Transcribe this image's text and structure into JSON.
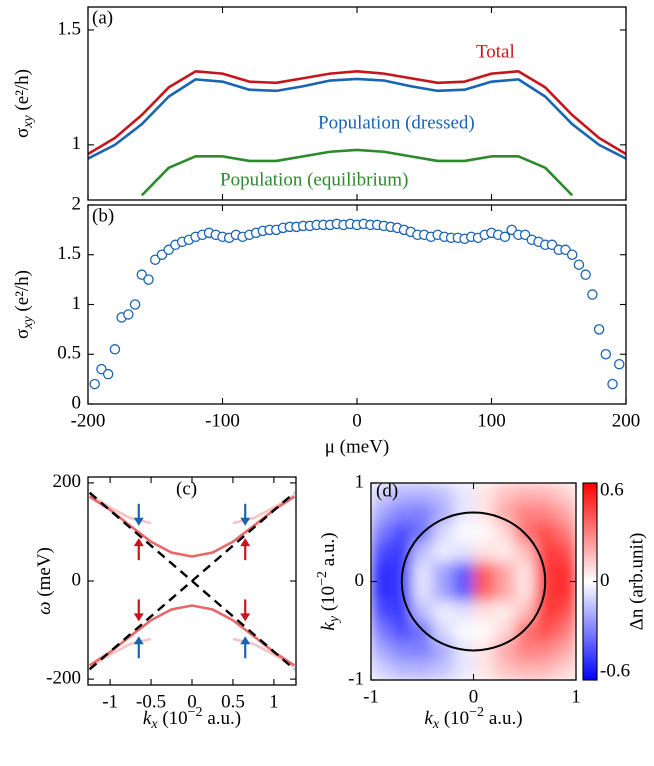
{
  "chart_data": [
    {
      "type": "line",
      "label": "(a)",
      "ylabel": [
        "σ",
        "xy",
        " (e²/h)"
      ],
      "x": [
        -200,
        -180,
        -160,
        -140,
        -120,
        -100,
        -80,
        -60,
        -40,
        -20,
        0,
        20,
        40,
        60,
        80,
        100,
        120,
        140,
        160,
        180,
        200
      ],
      "series": [
        {
          "name": "Total",
          "color": "#c4161c",
          "values": [
            0.96,
            1.03,
            1.13,
            1.25,
            1.32,
            1.31,
            1.275,
            1.27,
            1.29,
            1.31,
            1.32,
            1.31,
            1.29,
            1.27,
            1.275,
            1.31,
            1.32,
            1.25,
            1.13,
            1.03,
            0.96
          ]
        },
        {
          "name": "Population (dressed)",
          "color": "#1a64b4",
          "values": [
            0.94,
            1.0,
            1.09,
            1.21,
            1.285,
            1.275,
            1.24,
            1.235,
            1.255,
            1.28,
            1.287,
            1.28,
            1.255,
            1.235,
            1.24,
            1.275,
            1.285,
            1.21,
            1.09,
            1.0,
            0.94
          ]
        },
        {
          "name": "Population (equilibrium)",
          "color": "#2c8a2c",
          "values": [
            null,
            null,
            0.78,
            0.9,
            0.95,
            0.95,
            0.93,
            0.93,
            0.95,
            0.97,
            0.978,
            0.97,
            0.95,
            0.93,
            0.93,
            0.95,
            0.95,
            0.9,
            0.78,
            null,
            null
          ]
        }
      ],
      "xlim": [
        -200,
        200
      ],
      "ylim": [
        0.76,
        1.6
      ],
      "yticks": [
        1,
        1.5
      ]
    },
    {
      "type": "scatter",
      "label": "(b)",
      "ylabel": [
        "σ",
        "xy",
        " (e²/h)"
      ],
      "xlabel": "μ (meV)",
      "color": "#1a64b4",
      "x": [
        -195,
        -190,
        -185,
        -180,
        -175,
        -170,
        -165,
        -160,
        -155,
        -150,
        -145,
        -140,
        -135,
        -130,
        -125,
        -120,
        -115,
        -110,
        -105,
        -100,
        -95,
        -90,
        -85,
        -80,
        -75,
        -70,
        -65,
        -60,
        -55,
        -50,
        -45,
        -40,
        -35,
        -30,
        -25,
        -20,
        -15,
        -10,
        -5,
        0,
        5,
        10,
        15,
        20,
        25,
        30,
        35,
        40,
        45,
        50,
        55,
        60,
        65,
        70,
        75,
        80,
        85,
        90,
        95,
        100,
        105,
        110,
        115,
        120,
        125,
        130,
        135,
        140,
        145,
        150,
        155,
        160,
        165,
        170,
        175,
        180,
        185,
        190,
        195
      ],
      "values": [
        0.2,
        0.35,
        0.3,
        0.55,
        0.87,
        0.9,
        1.0,
        1.3,
        1.25,
        1.45,
        1.5,
        1.55,
        1.6,
        1.63,
        1.65,
        1.68,
        1.7,
        1.72,
        1.7,
        1.68,
        1.67,
        1.7,
        1.68,
        1.7,
        1.72,
        1.74,
        1.75,
        1.75,
        1.77,
        1.78,
        1.78,
        1.79,
        1.79,
        1.8,
        1.8,
        1.8,
        1.81,
        1.8,
        1.81,
        1.8,
        1.81,
        1.8,
        1.8,
        1.79,
        1.78,
        1.77,
        1.75,
        1.73,
        1.7,
        1.7,
        1.68,
        1.7,
        1.68,
        1.67,
        1.67,
        1.66,
        1.68,
        1.67,
        1.7,
        1.72,
        1.7,
        1.68,
        1.75,
        1.7,
        1.7,
        1.65,
        1.63,
        1.6,
        1.6,
        1.55,
        1.55,
        1.5,
        1.4,
        1.3,
        1.1,
        0.75,
        0.5,
        0.2,
        0.4
      ],
      "xlim": [
        -200,
        200
      ],
      "ylim": [
        0,
        2
      ],
      "xticks": [
        -200,
        -100,
        0,
        100,
        200
      ],
      "yticks": [
        0,
        0.5,
        1,
        1.5,
        2
      ]
    },
    {
      "type": "line",
      "label": "(c)",
      "ylabel": [
        "ω",
        " (meV)"
      ],
      "xlabel": [
        "k",
        "x",
        " (10",
        "−2",
        " a.u.)"
      ],
      "x": [
        -1.25,
        -1,
        -0.75,
        -0.5,
        -0.25,
        0,
        0.25,
        0.5,
        0.75,
        1,
        1.25
      ],
      "series": [
        {
          "color": "#f5c6c6",
          "values": [
            175,
            150,
            128,
            118,
            null,
            null,
            null,
            118,
            128,
            150,
            175
          ]
        },
        {
          "color": "#f5c6c6",
          "values": [
            -175,
            -150,
            -128,
            -118,
            null,
            null,
            null,
            -118,
            -128,
            -150,
            -175
          ]
        },
        {
          "color": "#e8696b",
          "values": [
            172,
            145,
            112,
            80,
            58,
            50,
            58,
            80,
            112,
            145,
            172
          ]
        },
        {
          "color": "#e8696b",
          "values": [
            -172,
            -145,
            -112,
            -80,
            -58,
            -50,
            -58,
            -80,
            -112,
            -145,
            -172
          ]
        },
        {
          "color": "#000000",
          "dashed": true,
          "values": [
            -180,
            -144,
            -108,
            -72,
            -36,
            0,
            36,
            72,
            108,
            144,
            180
          ]
        },
        {
          "color": "#000000",
          "dashed": true,
          "values": [
            180,
            144,
            108,
            72,
            36,
            0,
            -36,
            -72,
            -108,
            -144,
            -180
          ]
        }
      ],
      "arrows": [
        {
          "x": -0.65,
          "y": 135,
          "direction": "down",
          "color": "#1a64b4"
        },
        {
          "x": 0.65,
          "y": 135,
          "direction": "down",
          "color": "#1a64b4"
        },
        {
          "x": -0.65,
          "y": 65,
          "direction": "up",
          "color": "#c4161c"
        },
        {
          "x": 0.65,
          "y": 65,
          "direction": "up",
          "color": "#c4161c"
        },
        {
          "x": -0.65,
          "y": -60,
          "direction": "down",
          "color": "#c4161c"
        },
        {
          "x": 0.65,
          "y": -60,
          "direction": "down",
          "color": "#c4161c"
        },
        {
          "x": -0.65,
          "y": -135,
          "direction": "up",
          "color": "#1a64b4"
        },
        {
          "x": 0.65,
          "y": -135,
          "direction": "up",
          "color": "#1a64b4"
        }
      ],
      "xlim": [
        -1.27,
        1.27
      ],
      "ylim": [
        -212,
        212
      ],
      "xticks": [
        -1,
        -0.5,
        0,
        0.5,
        1
      ],
      "yticks": [
        -200,
        0,
        200
      ]
    },
    {
      "type": "heatmap",
      "label": "(d)",
      "ylabel": [
        "k",
        "y",
        " (10",
        "−2",
        " a.u.)"
      ],
      "xlabel": [
        "k",
        "x",
        " (10",
        "−2",
        " a.u.)"
      ],
      "x": [
        -0.9,
        -0.7,
        -0.5,
        -0.3,
        -0.1,
        0.1,
        0.3,
        0.5,
        0.7,
        0.9
      ],
      "y": [
        0.9,
        0.7,
        0.5,
        0.3,
        0.1,
        -0.1,
        -0.3,
        -0.5,
        -0.7,
        -0.9
      ],
      "z": [
        [
          -0.11,
          -0.17,
          -0.18,
          -0.14,
          -0.06,
          0.06,
          0.14,
          0.18,
          0.17,
          0.11
        ],
        [
          -0.21,
          -0.29,
          -0.3,
          -0.2,
          -0.06,
          0.06,
          0.2,
          0.3,
          0.29,
          0.21
        ],
        [
          -0.32,
          -0.42,
          -0.33,
          -0.09,
          -0.01,
          0.01,
          0.09,
          0.33,
          0.42,
          0.32
        ],
        [
          -0.43,
          -0.47,
          -0.15,
          -0.04,
          -0.07,
          0.07,
          0.04,
          0.15,
          0.47,
          0.43
        ],
        [
          -0.5,
          -0.46,
          -0.06,
          -0.22,
          -0.39,
          0.39,
          0.22,
          0.06,
          0.46,
          0.5
        ],
        [
          -0.5,
          -0.46,
          -0.06,
          -0.22,
          -0.39,
          0.39,
          0.22,
          0.06,
          0.46,
          0.5
        ],
        [
          -0.43,
          -0.47,
          -0.15,
          -0.04,
          -0.07,
          0.07,
          0.04,
          0.15,
          0.47,
          0.43
        ],
        [
          -0.32,
          -0.42,
          -0.33,
          -0.09,
          -0.01,
          0.01,
          0.09,
          0.33,
          0.42,
          0.32
        ],
        [
          -0.21,
          -0.29,
          -0.3,
          -0.2,
          -0.06,
          0.06,
          0.2,
          0.3,
          0.29,
          0.21
        ],
        [
          -0.11,
          -0.17,
          -0.18,
          -0.14,
          -0.06,
          0.06,
          0.14,
          0.18,
          0.17,
          0.11
        ]
      ],
      "circle_radius": 0.7,
      "xlim": [
        -1,
        1
      ],
      "ylim": [
        -1,
        1
      ],
      "xticks": [
        -1,
        0,
        1
      ],
      "yticks": [
        -1,
        0,
        1
      ],
      "clim": [
        -0.6,
        0.6
      ],
      "cticks": [
        -0.6,
        0,
        0.6
      ],
      "colorbar_label": "Δn (arb.unit)"
    }
  ]
}
